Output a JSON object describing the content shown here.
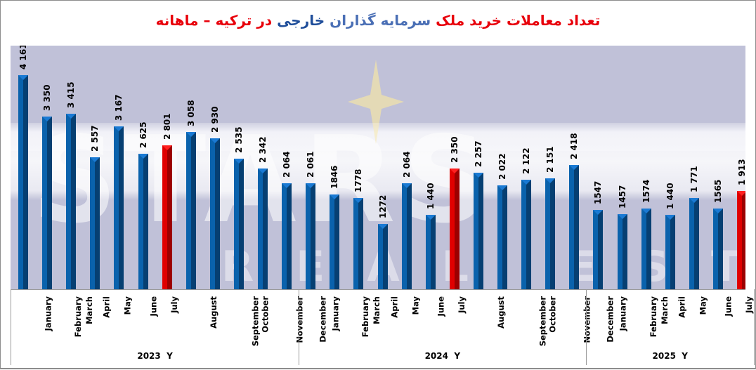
{
  "title": {
    "segments": [
      {
        "text": "تعداد معاملات خرید ملک ",
        "color": "#e8000b"
      },
      {
        "text": "سرمایه گذاران ",
        "color": "#4a6fb5"
      },
      {
        "text": "خارجی ",
        "color": "#1f4e9a"
      },
      {
        "text": "در ترکیه – ماهانه",
        "color": "#e8000b"
      }
    ],
    "full": "تعداد معاملات خرید ملک سرمایه گذاران خارجی در ترکیه – ماهانه"
  },
  "watermark": {
    "text": "STARS",
    "subtext": "REAL ESTATE"
  },
  "colors": {
    "bar_normal_face": "#0a62ac",
    "bar_normal_side": "#063f72",
    "bar_normal_cap": "#1a7ad4",
    "bar_highlight_face": "#e00000",
    "bar_highlight_side": "#9c0000",
    "bar_highlight_cap": "#ff2020",
    "plot_bg": "#c0c1d8"
  },
  "chart_data": {
    "type": "bar",
    "title": "تعداد معاملات خرید ملک سرمایه گذاران خارجی در ترکیه – ماهانه",
    "xlabel": "",
    "ylabel": "",
    "ylim": [
      0,
      4400
    ],
    "grid": false,
    "legend": "none",
    "groups": [
      {
        "label": "2023  Y",
        "categories": [
          "January",
          "February",
          "March",
          "April",
          "May",
          "June",
          "July",
          "August",
          "September",
          "October",
          "November",
          "December"
        ],
        "values": [
          4161,
          3350,
          3415,
          2557,
          3167,
          2625,
          2801,
          3058,
          2930,
          2535,
          2342,
          2064
        ],
        "labels": [
          "4 161",
          "3 350",
          "3 415",
          "2 557",
          "3 167",
          "2 625",
          "2 801",
          "3 058",
          "2 930",
          "2 535",
          "2 342",
          "2 064"
        ],
        "highlight": [
          6
        ]
      },
      {
        "label": "2024  Y",
        "categories": [
          "January",
          "February",
          "March",
          "April",
          "May",
          "June",
          "July",
          "August",
          "September",
          "October",
          "November",
          "December"
        ],
        "values": [
          2061,
          1846,
          1778,
          1272,
          2064,
          1440,
          2350,
          2257,
          2022,
          2122,
          2151,
          2418
        ],
        "labels": [
          "2 061",
          "1846",
          "1778",
          "1272",
          "2 064",
          "1 440",
          "2 350",
          "2 257",
          "2 022",
          "2 122",
          "2 151",
          "2 418"
        ],
        "highlight": [
          6
        ]
      },
      {
        "label": "2025  Y",
        "categories": [
          "January",
          "February",
          "March",
          "April",
          "May",
          "June",
          "July"
        ],
        "values": [
          1547,
          1457,
          1574,
          1440,
          1771,
          1565,
          1913
        ],
        "labels": [
          "1547",
          "1457",
          "1574",
          "1 440",
          "1 771",
          "1565",
          "1 913"
        ],
        "highlight": [
          6
        ]
      }
    ]
  }
}
